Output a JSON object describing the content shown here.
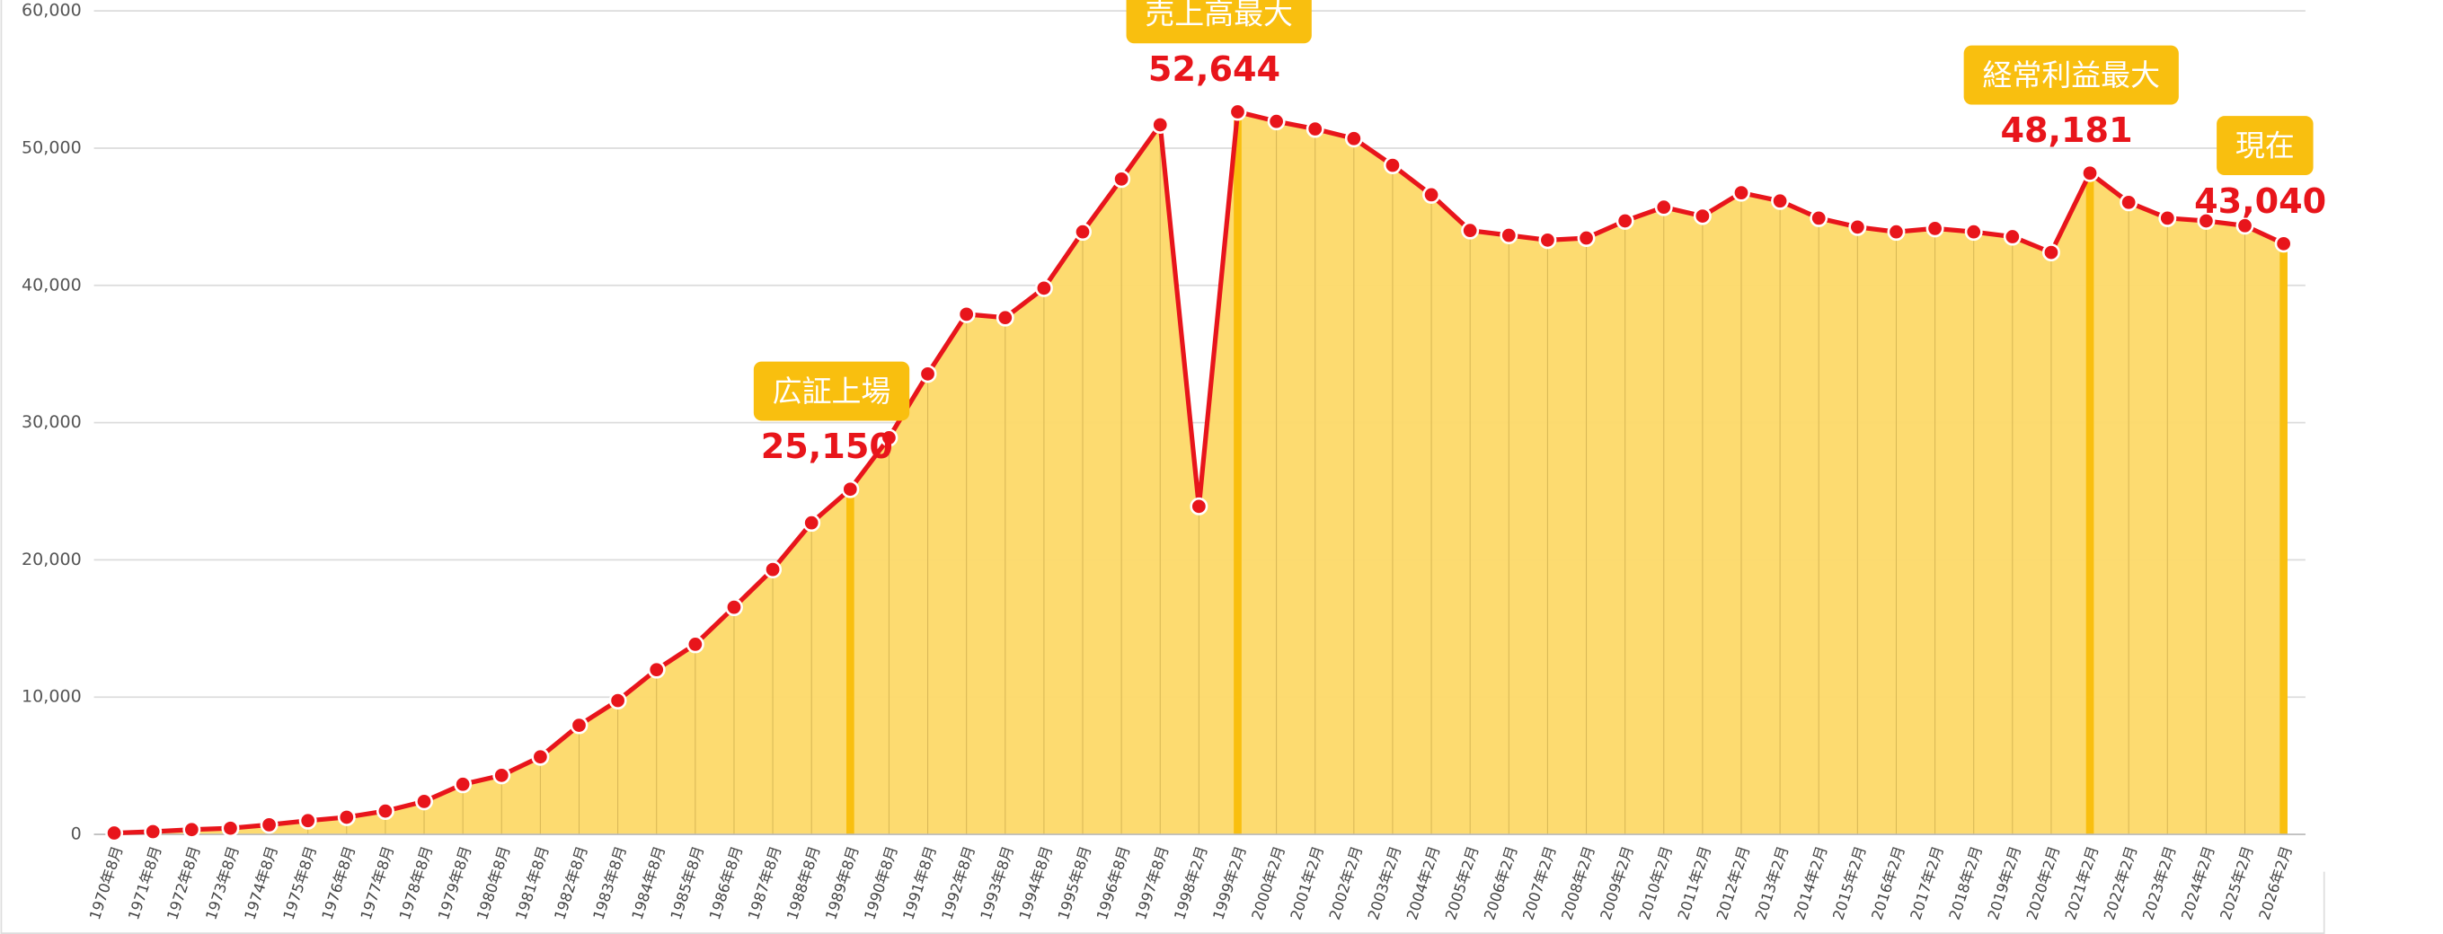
{
  "chart_data": {
    "type": "area",
    "categories": [
      "1970年8月",
      "1971年8月",
      "1972年8月",
      "1973年8月",
      "1974年8月",
      "1975年8月",
      "1976年8月",
      "1977年8月",
      "1978年8月",
      "1979年8月",
      "1980年8月",
      "1981年8月",
      "1982年8月",
      "1983年8月",
      "1984年8月",
      "1985年8月",
      "1986年8月",
      "1987年8月",
      "1988年8月",
      "1989年8月",
      "1990年8月",
      "1991年8月",
      "1992年8月",
      "1993年8月",
      "1994年8月",
      "1995年8月",
      "1996年8月",
      "1997年8月",
      "1998年2月",
      "1999年2月",
      "2000年2月",
      "2001年2月",
      "2002年2月",
      "2003年2月",
      "2004年2月",
      "2005年2月",
      "2006年2月",
      "2007年2月",
      "2008年2月",
      "2009年2月",
      "2010年2月",
      "2011年2月",
      "2012年2月",
      "2013年2月",
      "2014年2月",
      "2015年2月",
      "2016年2月",
      "2017年2月",
      "2018年2月",
      "2019年2月",
      "2020年2月",
      "2021年2月",
      "2022年2月",
      "2023年2月",
      "2024年2月",
      "2025年2月",
      "2026年2月"
    ],
    "values": [
      100,
      200,
      350,
      450,
      700,
      1000,
      1250,
      1700,
      2400,
      3650,
      4300,
      5650,
      7950,
      9750,
      12000,
      13850,
      16550,
      19300,
      22700,
      25150,
      28900,
      33550,
      37900,
      37650,
      39800,
      43900,
      47750,
      51700,
      23900,
      52644,
      51950,
      51400,
      50700,
      48750,
      46600,
      44000,
      43650,
      43300,
      43450,
      44700,
      45700,
      45050,
      46750,
      46150,
      44900,
      44250,
      43900,
      44150,
      43900,
      43550,
      42400,
      48181,
      46050,
      44900,
      44700,
      44350,
      43040
    ],
    "value_labels": [
      null,
      null,
      null,
      null,
      null,
      null,
      null,
      null,
      null,
      null,
      null,
      null,
      null,
      null,
      null,
      null,
      null,
      null,
      null,
      "25,150",
      null,
      null,
      null,
      null,
      null,
      null,
      null,
      null,
      null,
      "52,644",
      null,
      null,
      null,
      null,
      null,
      null,
      null,
      null,
      null,
      null,
      null,
      null,
      null,
      null,
      null,
      null,
      null,
      null,
      null,
      null,
      null,
      "48,181",
      null,
      null,
      null,
      null,
      "43,040"
    ],
    "annotations": [
      {
        "text": "広証上場",
        "category": "1989年8月"
      },
      {
        "text": "売上高最大",
        "category": "1999年2月"
      },
      {
        "text": "経常利益最大",
        "category": "2021年2月"
      },
      {
        "text": "現在",
        "category": "2026年2月"
      }
    ],
    "color": "#fdd968",
    "line_color": "#e8151b",
    "highlight_color": "#f9bf0f",
    "ylim": [
      0,
      60000
    ],
    "yticks": [
      0,
      {
        "value": 10000,
        "label": "10,000"
      },
      {
        "value": 20000,
        "label": "20,000"
      },
      {
        "value": 30000,
        "label": "30,000"
      },
      {
        "value": 40000,
        "label": "40,000"
      },
      {
        "value": 50000,
        "label": "50,000"
      },
      {
        "value": 60000,
        "label": "60,000"
      }
    ],
    "grid": true
  }
}
